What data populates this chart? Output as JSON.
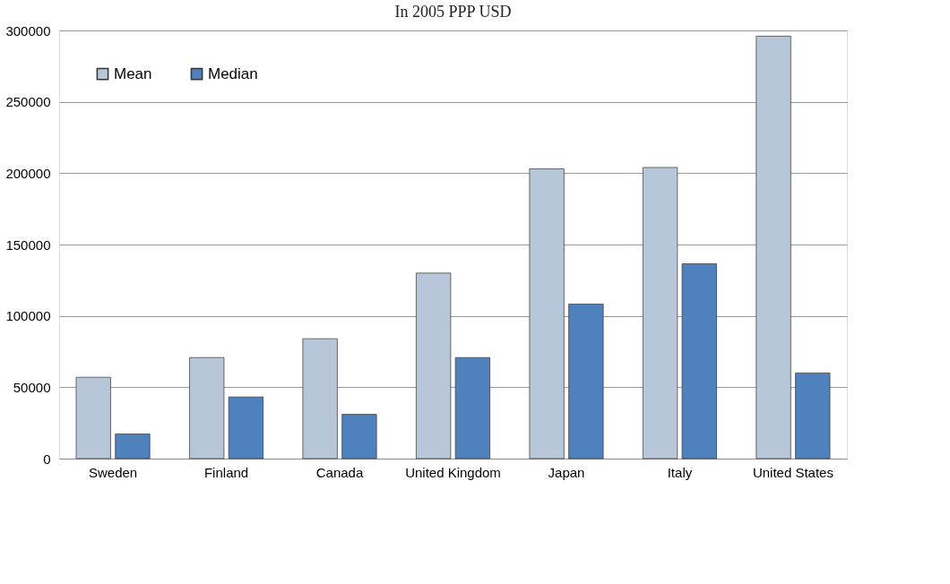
{
  "chart_data": {
    "type": "bar",
    "title": "In 2005 PPP USD",
    "categories": [
      "Sweden",
      "Finland",
      "Canada",
      "United Kingdom",
      "Japan",
      "Italy",
      "United States"
    ],
    "series": [
      {
        "name": "Mean",
        "color": "#b8c6da",
        "values": [
          57000,
          70800,
          84000,
          130000,
          203000,
          204000,
          296000
        ]
      },
      {
        "name": "Median",
        "color": "#4f81bd",
        "values": [
          17300,
          43200,
          31000,
          70800,
          108300,
          136500,
          60000
        ]
      }
    ],
    "ylim": [
      0,
      300000
    ],
    "yticks": [
      0,
      50000,
      100000,
      150000,
      200000,
      250000,
      300000
    ],
    "grid": "y",
    "legend": "top left"
  }
}
